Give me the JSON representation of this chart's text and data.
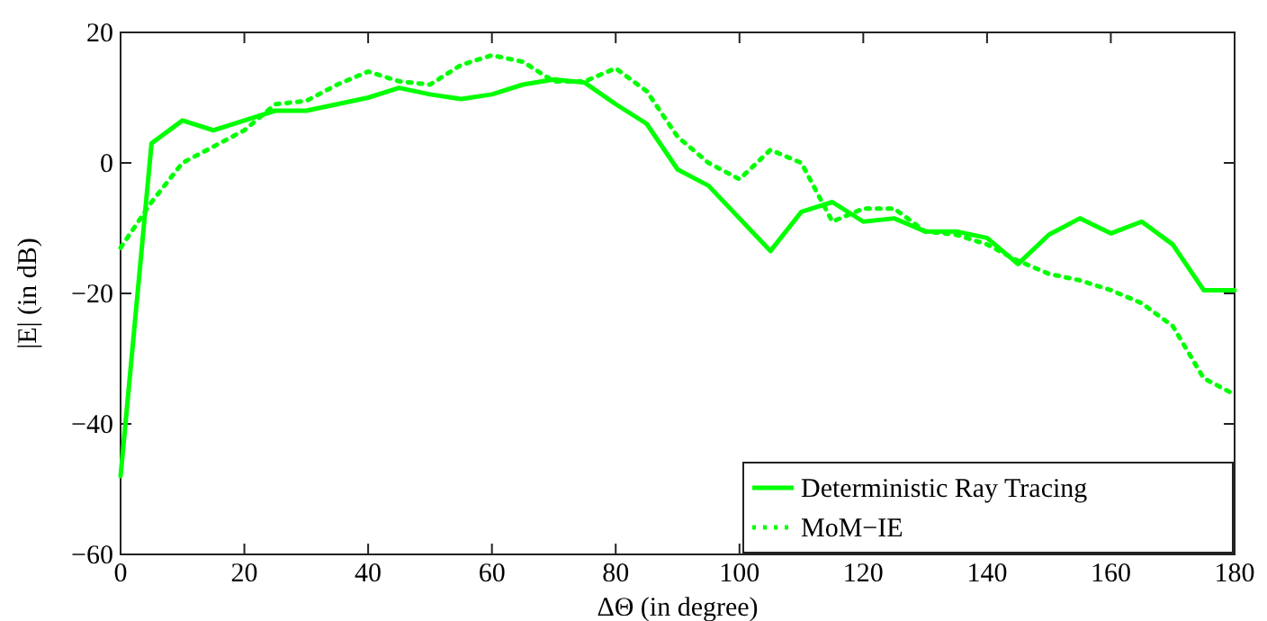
{
  "chart_data": {
    "type": "line",
    "xlabel": "ΔΘ (in degree)",
    "ylabel": "|E| (in dB)",
    "x": [
      0,
      5,
      10,
      15,
      20,
      25,
      30,
      35,
      40,
      45,
      50,
      55,
      60,
      65,
      70,
      75,
      80,
      85,
      90,
      95,
      100,
      105,
      110,
      115,
      120,
      125,
      130,
      135,
      140,
      145,
      150,
      155,
      160,
      165,
      170,
      175,
      180
    ],
    "series": [
      {
        "name": "Deterministic Ray Tracing",
        "color": "#00ff00",
        "line_style": "solid",
        "values": [
          -48,
          3,
          6.5,
          5,
          6.5,
          8,
          8,
          9,
          10,
          11.5,
          10.5,
          9.8,
          10.5,
          12,
          12.8,
          12.3,
          9,
          6,
          -1,
          -3.5,
          -8.5,
          -13.5,
          -7.5,
          -6,
          -9,
          -8.5,
          -10.5,
          -10.5,
          -11.5,
          -15.5,
          -11,
          -8.5,
          -10.8,
          -9,
          -12.5,
          -19.5,
          -19.5
        ]
      },
      {
        "name": "MoM−IE",
        "color": "#00ff00",
        "line_style": "dotted",
        "values": [
          -13,
          -6,
          0,
          2.5,
          5,
          9,
          9.5,
          12,
          14,
          12.5,
          12,
          15,
          16.5,
          15.5,
          12.5,
          12.5,
          14.5,
          11,
          4,
          0,
          -2.5,
          2,
          0,
          -9,
          -7,
          -7,
          -10.5,
          -11,
          -12.5,
          -15,
          -17,
          -18,
          -19.5,
          -21.5,
          -25,
          -33,
          -35.5
        ]
      }
    ],
    "xlim": [
      0,
      180
    ],
    "xticks": [
      0,
      20,
      40,
      60,
      80,
      100,
      120,
      140,
      160,
      180
    ],
    "ylim": [
      -60,
      20
    ],
    "yticks": [
      -60,
      -40,
      -20,
      0,
      20
    ],
    "grid": false,
    "legend": "bottom right"
  }
}
